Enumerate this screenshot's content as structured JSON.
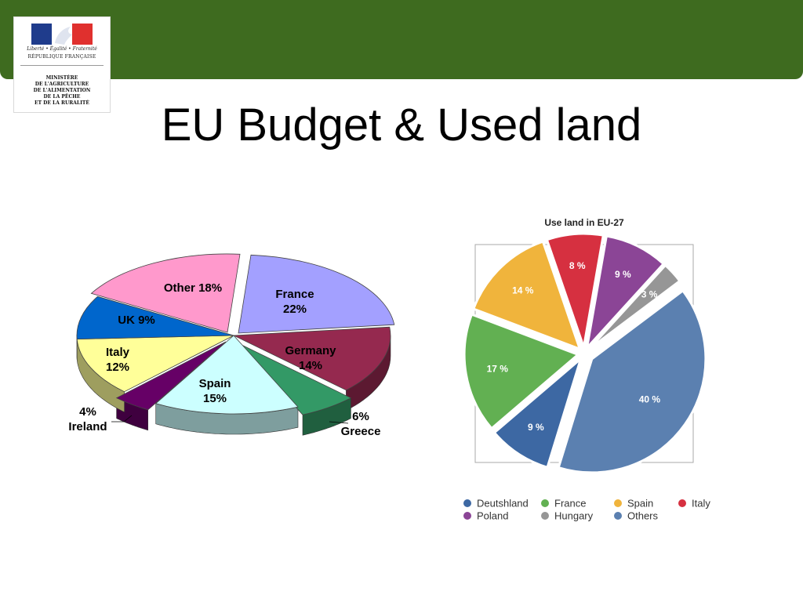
{
  "header": {
    "logo": {
      "motto": "Liberté • Égalité • Fraternité",
      "republic": "RÉPUBLIQUE FRANÇAISE",
      "ministry": "MINISTÈRE\nDE L'AGRICULTURE\nDE L'ALIMENTATION\nDE LA PÊCHE\nET DE LA RURALITÉ"
    },
    "band_color": "#3e6b1f"
  },
  "page": {
    "title": "EU Budget & Used land"
  },
  "chart_data": [
    {
      "type": "pie",
      "style": "3d-exploded",
      "title": "",
      "slices": [
        {
          "label": "France",
          "value": 22,
          "text": "22%",
          "color": "#a3a0ff"
        },
        {
          "label": "Germany",
          "value": 14,
          "text": "14%",
          "color": "#95294f"
        },
        {
          "label": "Greece",
          "value": 6,
          "text": "6%",
          "color": "#339966"
        },
        {
          "label": "Spain",
          "value": 15,
          "text": "15%",
          "color": "#ccffff"
        },
        {
          "label": "Ireland",
          "value": 4,
          "text": "4%",
          "color": "#660066"
        },
        {
          "label": "Italy",
          "value": 12,
          "text": "12%",
          "color": "#ffff99"
        },
        {
          "label": "UK",
          "value": 9,
          "text": "9%",
          "color": "#0066cc"
        },
        {
          "label": "Other",
          "value": 18,
          "text": "18%",
          "color": "#ff99cc"
        }
      ]
    },
    {
      "type": "pie",
      "style": "exploded",
      "title": "Use land in EU-27",
      "slices": [
        {
          "label": "Italy",
          "value": 8,
          "text": "8 %",
          "color": "#d63040"
        },
        {
          "label": "Poland",
          "value": 9,
          "text": "9 %",
          "color": "#8b4596"
        },
        {
          "label": "Hungary",
          "value": 3,
          "text": "3 %",
          "color": "#969696"
        },
        {
          "label": "Others",
          "value": 40,
          "text": "40 %",
          "color": "#5b80b0"
        },
        {
          "label": "Deutshland",
          "value": 9,
          "text": "9 %",
          "color": "#3d68a3"
        },
        {
          "label": "France",
          "value": 17,
          "text": "17 %",
          "color": "#62b052"
        },
        {
          "label": "Spain",
          "value": 14,
          "text": "14 %",
          "color": "#f0b43c"
        }
      ],
      "legend": [
        {
          "label": "Deutshland",
          "color": "#3d68a3"
        },
        {
          "label": "France",
          "color": "#62b052"
        },
        {
          "label": "Spain",
          "color": "#f0b43c"
        },
        {
          "label": "Italy",
          "color": "#d63040"
        },
        {
          "label": "Poland",
          "color": "#8b4596"
        },
        {
          "label": "Hungary",
          "color": "#969696"
        },
        {
          "label": "Others",
          "color": "#5b80b0"
        }
      ],
      "legend_position": "bottom"
    }
  ]
}
